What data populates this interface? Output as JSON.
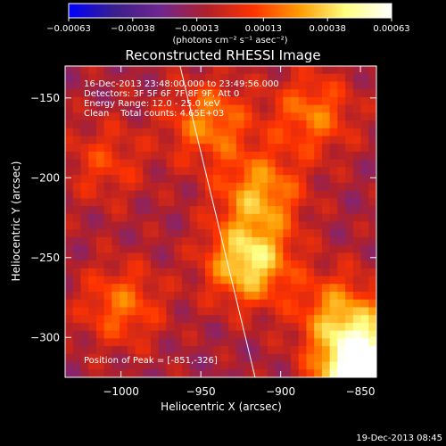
{
  "chart_data": {
    "type": "heatmap",
    "title": "Reconstructed RHESSI Image",
    "xlabel": "Heliocentric X (arcsec)",
    "ylabel": "Heliocentric Y (arcsec)",
    "xlim": [
      -1035,
      -840
    ],
    "ylim": [
      -325,
      -130
    ],
    "xticks": [
      {
        "v": -1000,
        "label": "−1000"
      },
      {
        "v": -950,
        "label": "−950"
      },
      {
        "v": -900,
        "label": "−900"
      },
      {
        "v": -850,
        "label": "−850"
      }
    ],
    "yticks": [
      {
        "v": -150,
        "label": "−150"
      },
      {
        "v": -200,
        "label": "−200"
      },
      {
        "v": -250,
        "label": "−250"
      },
      {
        "v": -300,
        "label": "−300"
      }
    ],
    "colorbar": {
      "min": -0.00063,
      "max": 0.00063,
      "ticks": [
        {
          "v": -0.00063,
          "label": "−0.00063"
        },
        {
          "v": -0.00038,
          "label": "−0.00038"
        },
        {
          "v": -0.00013,
          "label": "−0.00013"
        },
        {
          "v": 0.00013,
          "label": "0.00013"
        },
        {
          "v": 0.00038,
          "label": "0.00038"
        },
        {
          "v": 0.00063,
          "label": "0.00063"
        }
      ],
      "unit_label": "(photons cm⁻² s⁻¹ asec⁻²)",
      "colors": [
        "#0000ff",
        "#3a1f8c",
        "#70268f",
        "#b0202a",
        "#ff3300",
        "#ff9a00",
        "#ffff80",
        "#ffffff"
      ]
    },
    "sources": [
      {
        "x": -920,
        "y": -253,
        "peak": 0.00055
      },
      {
        "x": -851,
        "y": -326,
        "peak": 0.00063
      },
      {
        "x": -913,
        "y": -210,
        "peak": 0.0004
      },
      {
        "x": -945,
        "y": -165,
        "peak": 0.00035
      },
      {
        "x": -880,
        "y": -160,
        "peak": 0.00032
      },
      {
        "x": -1000,
        "y": -280,
        "peak": 0.0003
      },
      {
        "x": -1010,
        "y": -190,
        "peak": 0.0002
      },
      {
        "x": -865,
        "y": -285,
        "peak": 0.00035
      },
      {
        "x": -845,
        "y": -310,
        "peak": 0.0004
      }
    ],
    "limb_line": [
      {
        "x": -963,
        "y": -130
      },
      {
        "x": -916,
        "y": -325
      }
    ],
    "annotations": [
      "16-Dec-2013 23:48:00.000 to 23:49:56.000",
      "Detectors: 3F 5F 6F 7F 8F 9F, Att 0",
      "Energy Range: 12.0 - 25.0 keV",
      "Clean    Total counts: 4.65E+03"
    ],
    "peak_label": "Position of Peak = [-851,-326]",
    "grid": false
  },
  "footer": {
    "timestamp": "19-Dec-2013 08:45"
  }
}
